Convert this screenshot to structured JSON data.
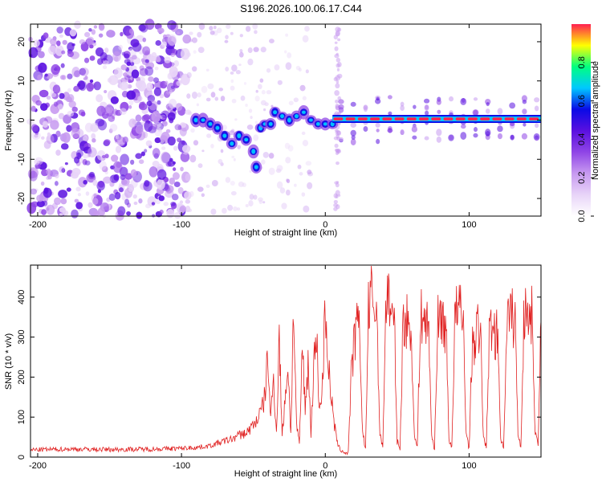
{
  "title": "S196.2026.100.06.17.C44",
  "colors": {
    "snr_line": "#e02020",
    "axis": "#000000",
    "background": "#ffffff"
  },
  "colormap": [
    "#ffffff",
    "#e8d4f8",
    "#c79af0",
    "#8f45e6",
    "#5a10e0",
    "#0a0ae6",
    "#00c8ff",
    "#00ff80",
    "#ffff00",
    "#ff2050"
  ],
  "chart_data": [
    {
      "type": "heatmap",
      "name": "spectrogram",
      "xlabel": "Height of straight line (km)",
      "ylabel": "Frequency (Hz)",
      "xlim": [
        -205,
        150
      ],
      "ylim": [
        -24.5,
        24.5
      ],
      "xticks": [
        -200,
        -100,
        0,
        100
      ],
      "yticks": [
        -20,
        -10,
        0,
        10,
        20
      ],
      "colorbar": {
        "label": "Normalized spectral amplitude",
        "range": [
          0.0,
          1.0
        ],
        "ticks": [
          "0.0",
          "0.2",
          "0.4",
          "0.6",
          "0.8"
        ]
      },
      "features": [
        {
          "description": "broadband noise",
          "x_range": [
            -205,
            -95
          ],
          "freq_range": [
            -24.5,
            24.5
          ]
        },
        {
          "description": "emerging signal",
          "x_range": [
            -95,
            -30
          ],
          "freq_range": [
            -15,
            3
          ]
        },
        {
          "description": "strong carrier near 0 Hz",
          "x_range": [
            5,
            150
          ],
          "frequency_hz": 0.3,
          "peak_amplitude": 0.95
        }
      ]
    },
    {
      "type": "line",
      "name": "snr",
      "xlabel": "Height of straight line (km)",
      "ylabel": "SNR (10 * v/v)",
      "xlim": [
        -205,
        150
      ],
      "ylim": [
        0,
        480
      ],
      "xticks": [
        -200,
        -100,
        0,
        100
      ],
      "yticks": [
        0,
        100,
        200,
        300,
        400
      ],
      "series": [
        {
          "name": "SNR",
          "x": [
            -205,
            -180,
            -150,
            -120,
            -100,
            -90,
            -80,
            -75,
            -70,
            -65,
            -60,
            -55,
            -50,
            -45,
            -42,
            -40,
            -38,
            -36,
            -34,
            -32,
            -30,
            -28,
            -26,
            -24,
            -22,
            -20,
            -18,
            -16,
            -14,
            -12,
            -10,
            -8,
            -6,
            -4,
            -2,
            0,
            2,
            4,
            6,
            8,
            10,
            12,
            14,
            16,
            18,
            20,
            22,
            24,
            26,
            28,
            30,
            32,
            34,
            36,
            38,
            40,
            42,
            44,
            46,
            48,
            50,
            52,
            54,
            56,
            58,
            60,
            62,
            64,
            66,
            68,
            70,
            72,
            74,
            76,
            78,
            80,
            82,
            84,
            86,
            88,
            90,
            92,
            94,
            96,
            98,
            100,
            102,
            104,
            106,
            108,
            110,
            112,
            114,
            116,
            118,
            120,
            122,
            124,
            126,
            128,
            130,
            132,
            134,
            136,
            138,
            140,
            142,
            144,
            146,
            148,
            150
          ],
          "values": [
            18,
            20,
            19,
            20,
            22,
            24,
            28,
            35,
            40,
            45,
            55,
            60,
            80,
            110,
            150,
            260,
            90,
            200,
            60,
            300,
            50,
            150,
            230,
            60,
            370,
            80,
            30,
            280,
            120,
            240,
            60,
            230,
            300,
            110,
            180,
            380,
            240,
            150,
            90,
            40,
            20,
            15,
            10,
            12,
            200,
            280,
            330,
            300,
            60,
            20,
            360,
            410,
            380,
            350,
            50,
            30,
            360,
            420,
            340,
            330,
            40,
            20,
            330,
            350,
            320,
            300,
            50,
            25,
            340,
            360,
            330,
            320,
            50,
            20,
            330,
            350,
            340,
            320,
            45,
            25,
            340,
            370,
            360,
            330,
            60,
            20,
            260,
            300,
            320,
            290,
            50,
            25,
            300,
            330,
            310,
            300,
            50,
            20,
            330,
            360,
            350,
            340,
            60,
            25,
            340,
            360,
            370,
            350,
            60,
            30,
            340
          ]
        }
      ]
    }
  ]
}
